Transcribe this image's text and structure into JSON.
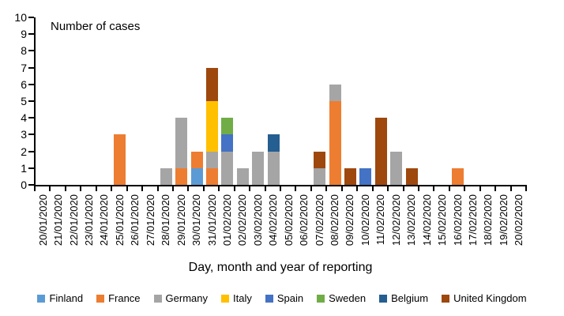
{
  "chart_data": {
    "type": "bar",
    "stacked": true,
    "title": "Number of cases",
    "xlabel": "Day, month and year of reporting",
    "ylabel": "Number of cases",
    "ylim": [
      0,
      10
    ],
    "yticks": [
      0,
      1,
      2,
      3,
      4,
      5,
      6,
      7,
      8,
      9,
      10
    ],
    "grid": false,
    "legend_position": "bottom",
    "categories": [
      "20/01/2020",
      "21/01/2020",
      "22/01/2020",
      "23/01/2020",
      "24/01/2020",
      "25/01/2020",
      "26/01/2020",
      "27/01/2020",
      "28/01/2020",
      "29/01/2020",
      "30/01/2020",
      "31/01/2020",
      "01/02/2020",
      "02/02/2020",
      "03/02/2020",
      "04/02/2020",
      "05/02/2020",
      "06/02/2020",
      "07/02/2020",
      "08/02/2020",
      "09/02/2020",
      "10/02/2020",
      "11/02/2020",
      "12/02/2020",
      "13/02/2020",
      "14/02/2020",
      "15/02/2020",
      "16/02/2020",
      "17/02/2020",
      "18/02/2020",
      "19/02/2020",
      "20/02/2020"
    ],
    "series": [
      {
        "name": "Finland",
        "color": "#5B9BD5",
        "values": [
          0,
          0,
          0,
          0,
          0,
          0,
          0,
          0,
          0,
          0,
          1,
          0,
          0,
          0,
          0,
          0,
          0,
          0,
          0,
          0,
          0,
          0,
          0,
          0,
          0,
          0,
          0,
          0,
          0,
          0,
          0,
          0
        ]
      },
      {
        "name": "France",
        "color": "#ED7D31",
        "values": [
          0,
          0,
          0,
          0,
          0,
          3,
          0,
          0,
          0,
          1,
          1,
          1,
          0,
          0,
          0,
          0,
          0,
          0,
          0,
          5,
          0,
          0,
          0,
          0,
          0,
          0,
          0,
          1,
          0,
          0,
          0,
          0
        ]
      },
      {
        "name": "Germany",
        "color": "#A5A5A5",
        "values": [
          0,
          0,
          0,
          0,
          0,
          0,
          0,
          0,
          1,
          3,
          0,
          1,
          2,
          1,
          2,
          2,
          0,
          0,
          1,
          1,
          0,
          0,
          0,
          2,
          0,
          0,
          0,
          0,
          0,
          0,
          0,
          0
        ]
      },
      {
        "name": "Italy",
        "color": "#FFC000",
        "values": [
          0,
          0,
          0,
          0,
          0,
          0,
          0,
          0,
          0,
          0,
          0,
          3,
          0,
          0,
          0,
          0,
          0,
          0,
          0,
          0,
          0,
          0,
          0,
          0,
          0,
          0,
          0,
          0,
          0,
          0,
          0,
          0
        ]
      },
      {
        "name": "Spain",
        "color": "#4472C4",
        "values": [
          0,
          0,
          0,
          0,
          0,
          0,
          0,
          0,
          0,
          0,
          0,
          0,
          1,
          0,
          0,
          0,
          0,
          0,
          0,
          0,
          0,
          1,
          0,
          0,
          0,
          0,
          0,
          0,
          0,
          0,
          0,
          0
        ]
      },
      {
        "name": "Sweden",
        "color": "#70AD47",
        "values": [
          0,
          0,
          0,
          0,
          0,
          0,
          0,
          0,
          0,
          0,
          0,
          0,
          1,
          0,
          0,
          0,
          0,
          0,
          0,
          0,
          0,
          0,
          0,
          0,
          0,
          0,
          0,
          0,
          0,
          0,
          0,
          0
        ]
      },
      {
        "name": "Belgium",
        "color": "#255E91",
        "values": [
          0,
          0,
          0,
          0,
          0,
          0,
          0,
          0,
          0,
          0,
          0,
          0,
          0,
          0,
          0,
          1,
          0,
          0,
          0,
          0,
          0,
          0,
          0,
          0,
          0,
          0,
          0,
          0,
          0,
          0,
          0,
          0
        ]
      },
      {
        "name": "United Kingdom",
        "color": "#9E480E",
        "values": [
          0,
          0,
          0,
          0,
          0,
          0,
          0,
          0,
          0,
          0,
          0,
          2,
          0,
          0,
          0,
          0,
          0,
          0,
          1,
          0,
          1,
          0,
          4,
          0,
          1,
          0,
          0,
          0,
          0,
          0,
          0,
          0
        ]
      }
    ]
  }
}
